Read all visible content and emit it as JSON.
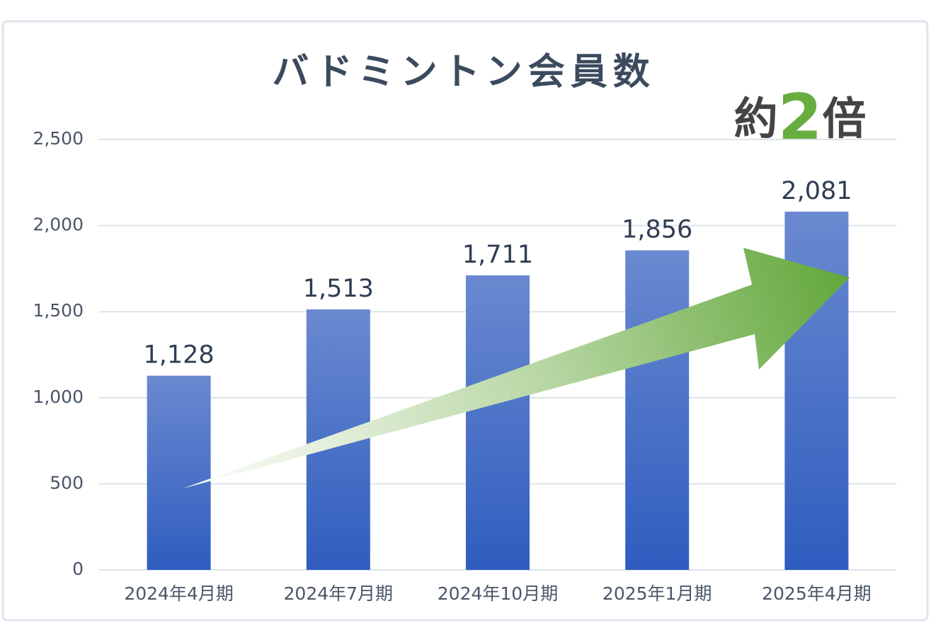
{
  "chart_data": {
    "type": "bar",
    "title": "バドミントン会員数",
    "annotation": [
      "約",
      "2",
      "倍"
    ],
    "categories": [
      "2024年4月期",
      "2024年7月期",
      "2024年10月期",
      "2025年1月期",
      "2025年4月期"
    ],
    "values": [
      1128,
      1513,
      1711,
      1856,
      2081
    ],
    "value_labels": [
      "1,128",
      "1,513",
      "1,711",
      "1,856",
      "2,081"
    ],
    "color": "#3f69c6",
    "ylim": [
      0,
      2500
    ],
    "yticks": [
      0,
      500,
      {
        "value": 1000,
        "label": "1,000"
      },
      {
        "value": 1500,
        "label": "1,500"
      },
      {
        "value": 2000,
        "label": "2,000"
      },
      {
        "value": 2500,
        "label": "2,500"
      }
    ],
    "grid": true
  }
}
